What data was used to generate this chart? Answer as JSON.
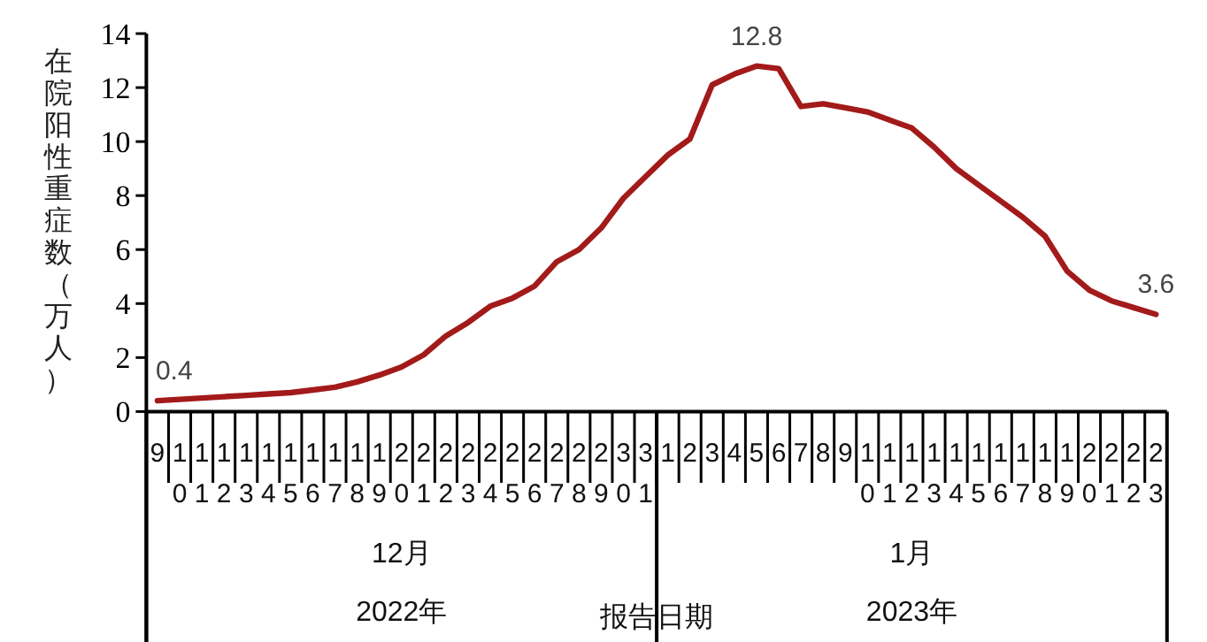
{
  "chart_data": {
    "type": "line",
    "ylabel": "在院阳性重症数（万人）",
    "xlabel": "报告日期",
    "categories": [
      "9",
      "10",
      "11",
      "12",
      "13",
      "14",
      "15",
      "16",
      "17",
      "18",
      "19",
      "20",
      "21",
      "22",
      "23",
      "24",
      "25",
      "26",
      "27",
      "28",
      "29",
      "30",
      "31",
      "1",
      "2",
      "3",
      "4",
      "5",
      "6",
      "7",
      "8",
      "9",
      "10",
      "11",
      "12",
      "13",
      "14",
      "15",
      "16",
      "17",
      "18",
      "19",
      "20",
      "21",
      "22",
      "23"
    ],
    "series": [
      {
        "color": "#a31a1a",
        "values": [
          0.4,
          0.45,
          0.5,
          0.55,
          0.6,
          0.65,
          0.7,
          0.8,
          0.9,
          1.1,
          1.35,
          1.65,
          2.1,
          2.8,
          3.3,
          3.9,
          4.2,
          4.65,
          5.55,
          6.0,
          6.8,
          7.9,
          8.7,
          9.5,
          10.1,
          12.1,
          12.5,
          12.8,
          12.7,
          11.3,
          11.4,
          11.25,
          11.1,
          10.8,
          10.5,
          9.8,
          9.0,
          8.4,
          7.8,
          7.2,
          6.5,
          5.2,
          4.5,
          4.1,
          3.85,
          3.6
        ],
        "value_labels": [
          "0.4",
          null,
          null,
          null,
          null,
          null,
          null,
          null,
          null,
          null,
          null,
          null,
          null,
          null,
          null,
          null,
          null,
          null,
          null,
          null,
          null,
          null,
          null,
          null,
          null,
          null,
          null,
          "12.8",
          null,
          null,
          null,
          null,
          null,
          null,
          null,
          null,
          null,
          null,
          null,
          null,
          null,
          null,
          null,
          null,
          null,
          "3.6"
        ]
      }
    ],
    "ylim": [
      0,
      14
    ],
    "yticks": [
      0,
      2,
      4,
      6,
      8,
      10,
      12,
      14
    ],
    "annotations": [
      "12月",
      "2022年",
      "1月",
      "2023年"
    ]
  }
}
